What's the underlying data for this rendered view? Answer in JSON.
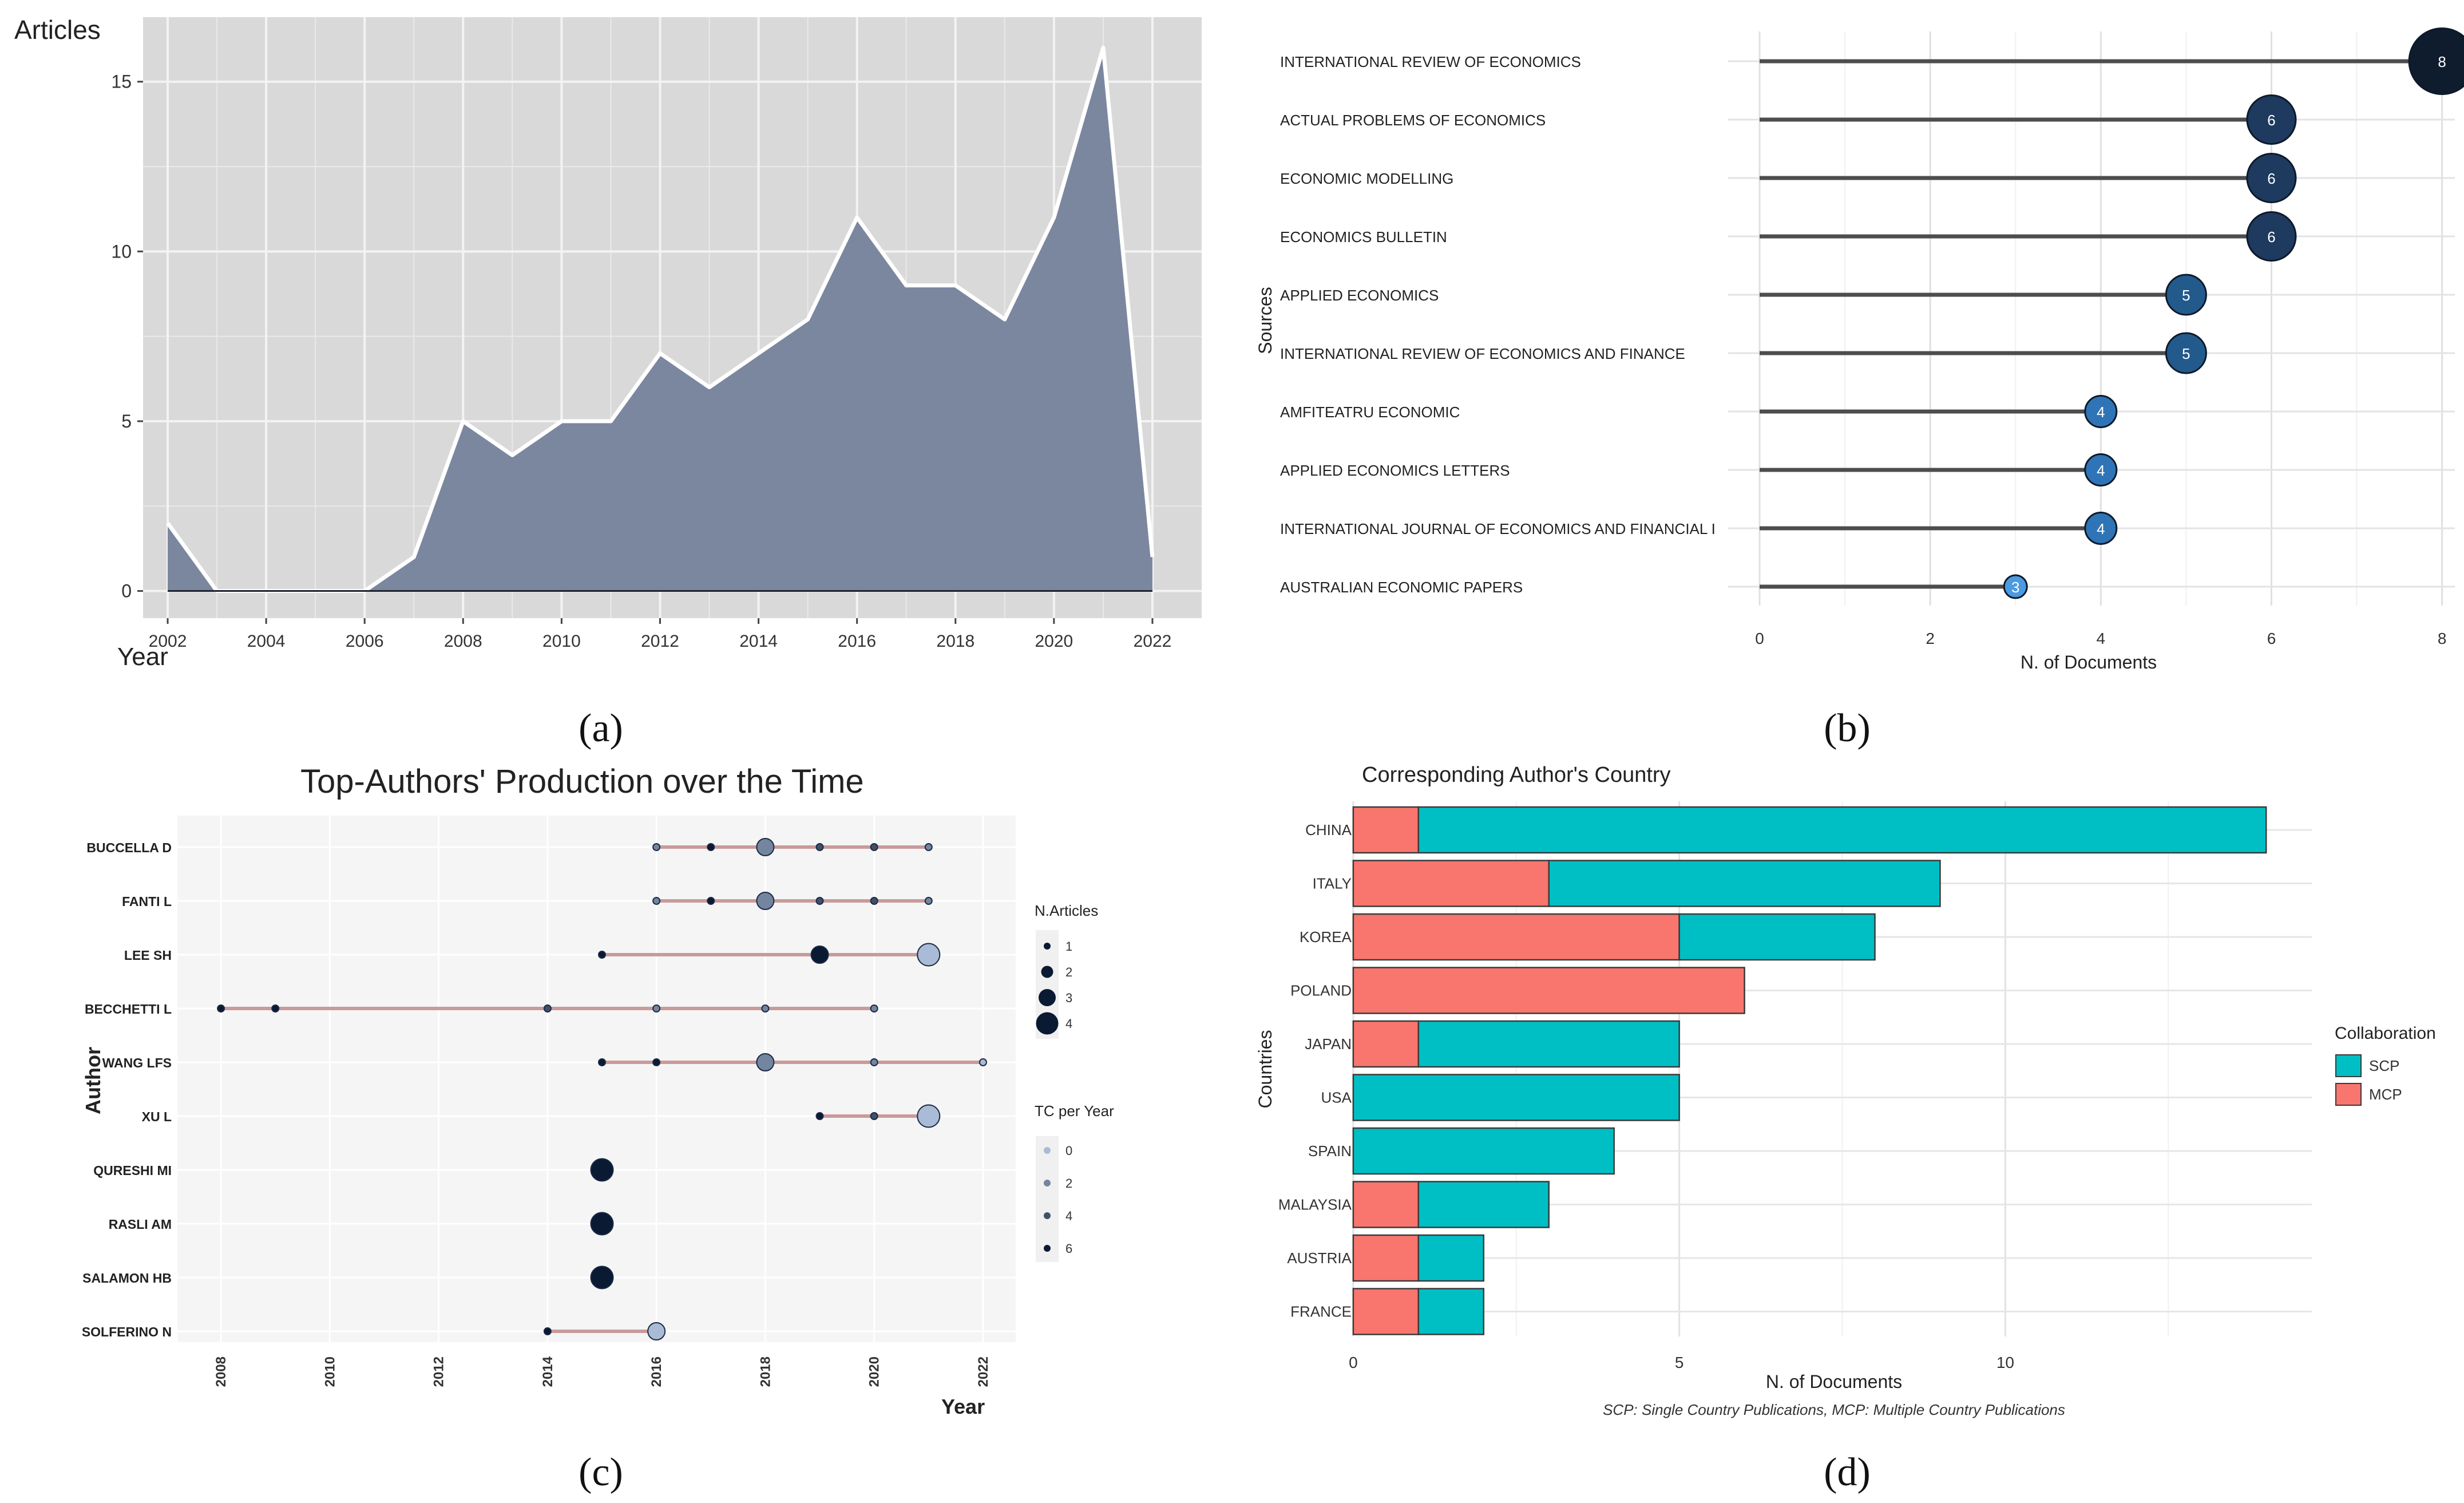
{
  "panel_labels": [
    "(a)",
    "(b)",
    "(c)",
    "(d)"
  ],
  "chart_data": [
    {
      "id": "a",
      "type": "area",
      "title": "",
      "xlabel": "Year",
      "ylabel": "Articles",
      "x": [
        2002,
        2003,
        2004,
        2005,
        2006,
        2007,
        2008,
        2009,
        2010,
        2011,
        2012,
        2013,
        2014,
        2015,
        2016,
        2017,
        2018,
        2019,
        2020,
        2021,
        2022
      ],
      "values": [
        2,
        0,
        0,
        0,
        0,
        1,
        5,
        4,
        5,
        5,
        7,
        6,
        7,
        8,
        11,
        9,
        9,
        8,
        11,
        16,
        1
      ],
      "xlim": [
        2001.5,
        2023
      ],
      "ylim": [
        -0.8,
        16.9
      ],
      "xticks": [
        2002,
        2004,
        2006,
        2008,
        2010,
        2012,
        2014,
        2016,
        2018,
        2020,
        2022
      ],
      "yticks": [
        0,
        5,
        10,
        15
      ],
      "grid": true,
      "colors": {
        "fill": "#7b879f",
        "line": "#ffffff",
        "panel_bg": "#d9d9d9",
        "grid": "#f3f3f3"
      }
    },
    {
      "id": "b",
      "type": "bar",
      "subtype": "lollipop",
      "xlabel": "N. of Documents",
      "ylabel": "Sources",
      "categories": [
        "INTERNATIONAL REVIEW OF ECONOMICS",
        "ACTUAL PROBLEMS OF ECONOMICS",
        "ECONOMIC MODELLING",
        "ECONOMICS BULLETIN",
        "APPLIED ECONOMICS",
        "INTERNATIONAL REVIEW OF ECONOMICS AND FINANCE",
        "AMFITEATRU ECONOMIC",
        "APPLIED ECONOMICS LETTERS",
        "INTERNATIONAL JOURNAL OF ECONOMICS AND FINANCIAL I",
        "AUSTRALIAN ECONOMIC PAPERS"
      ],
      "values": [
        8,
        6,
        6,
        6,
        5,
        5,
        4,
        4,
        4,
        3
      ],
      "xlim": [
        0,
        8.15
      ],
      "xticks": [
        0,
        2,
        4,
        6,
        8
      ],
      "grid": true,
      "colors": {
        "v8": "#0e1c2e",
        "v6": "#1e3a5e",
        "v5": "#235a8c",
        "v4": "#2f74b6",
        "v3": "#4a9be0",
        "stem": "#4d4d4d"
      }
    },
    {
      "id": "c",
      "type": "scatter",
      "title": "Top-Authors' Production over the Time",
      "xlabel": "Year",
      "ylabel": "Author",
      "authors": [
        "BUCCELLA D",
        "FANTI L",
        "LEE SH",
        "BECCHETTI L",
        "WANG LFS",
        "XU L",
        "QURESHI MI",
        "RASLI AM",
        "SALAMON HB",
        "SOLFERINO N"
      ],
      "series": [
        {
          "name": "BUCCELLA D",
          "range": [
            2016,
            2021
          ],
          "points": [
            {
              "year": 2016,
              "articles": 1,
              "tc": 2
            },
            {
              "year": 2017,
              "articles": 1,
              "tc": 6
            },
            {
              "year": 2018,
              "articles": 3,
              "tc": 2
            },
            {
              "year": 2019,
              "articles": 1,
              "tc": 4
            },
            {
              "year": 2020,
              "articles": 1,
              "tc": 4
            },
            {
              "year": 2021,
              "articles": 1,
              "tc": 2
            }
          ]
        },
        {
          "name": "FANTI L",
          "range": [
            2016,
            2021
          ],
          "points": [
            {
              "year": 2016,
              "articles": 1,
              "tc": 2
            },
            {
              "year": 2017,
              "articles": 1,
              "tc": 6
            },
            {
              "year": 2018,
              "articles": 3,
              "tc": 2
            },
            {
              "year": 2019,
              "articles": 1,
              "tc": 4
            },
            {
              "year": 2020,
              "articles": 1,
              "tc": 4
            },
            {
              "year": 2021,
              "articles": 1,
              "tc": 2
            }
          ]
        },
        {
          "name": "LEE SH",
          "range": [
            2015,
            2021
          ],
          "points": [
            {
              "year": 2015,
              "articles": 1,
              "tc": 6
            },
            {
              "year": 2019,
              "articles": 3,
              "tc": 6
            },
            {
              "year": 2021,
              "articles": 4,
              "tc": 0
            }
          ]
        },
        {
          "name": "BECCHETTI L",
          "range": [
            2008,
            2020
          ],
          "points": [
            {
              "year": 2008,
              "articles": 1,
              "tc": 6
            },
            {
              "year": 2009,
              "articles": 1,
              "tc": 6
            },
            {
              "year": 2014,
              "articles": 1,
              "tc": 4
            },
            {
              "year": 2016,
              "articles": 1,
              "tc": 2
            },
            {
              "year": 2018,
              "articles": 1,
              "tc": 2
            },
            {
              "year": 2020,
              "articles": 1,
              "tc": 2
            }
          ]
        },
        {
          "name": "WANG LFS",
          "range": [
            2015,
            2022
          ],
          "points": [
            {
              "year": 2015,
              "articles": 1,
              "tc": 6
            },
            {
              "year": 2016,
              "articles": 1,
              "tc": 6
            },
            {
              "year": 2018,
              "articles": 3,
              "tc": 2
            },
            {
              "year": 2020,
              "articles": 1,
              "tc": 2
            },
            {
              "year": 2022,
              "articles": 1,
              "tc": 0
            }
          ]
        },
        {
          "name": "XU L",
          "range": [
            2019,
            2021
          ],
          "points": [
            {
              "year": 2019,
              "articles": 1,
              "tc": 6
            },
            {
              "year": 2020,
              "articles": 1,
              "tc": 4
            },
            {
              "year": 2021,
              "articles": 4,
              "tc": 0
            }
          ]
        },
        {
          "name": "QURESHI MI",
          "range": [
            2015,
            2015
          ],
          "points": [
            {
              "year": 2015,
              "articles": 4,
              "tc": 6
            }
          ]
        },
        {
          "name": "RASLI AM",
          "range": [
            2015,
            2015
          ],
          "points": [
            {
              "year": 2015,
              "articles": 4,
              "tc": 6
            }
          ]
        },
        {
          "name": "SALAMON HB",
          "range": [
            2015,
            2015
          ],
          "points": [
            {
              "year": 2015,
              "articles": 4,
              "tc": 6
            }
          ]
        },
        {
          "name": "SOLFERINO N",
          "range": [
            2014,
            2016
          ],
          "points": [
            {
              "year": 2014,
              "articles": 1,
              "tc": 6
            },
            {
              "year": 2016,
              "articles": 3,
              "tc": 0
            }
          ]
        }
      ],
      "xlim": [
        2007.2,
        2022.6
      ],
      "xticks": [
        2008,
        2010,
        2012,
        2014,
        2016,
        2018,
        2020,
        2022
      ],
      "legend": {
        "size_title": "N.Articles",
        "size_values": [
          1,
          2,
          3,
          4
        ],
        "color_title": "TC per Year",
        "color_values": [
          0,
          2,
          4,
          6
        ]
      },
      "colors": {
        "panel_bg": "#f5f5f5",
        "line": "#c99a9a",
        "tc_low": "#a9bbd6",
        "tc_high": "#0b1a33"
      }
    },
    {
      "id": "d",
      "type": "bar",
      "subtype": "stacked-horizontal",
      "title": "Corresponding Author's Country",
      "xlabel": "N. of Documents",
      "ylabel": "Countries",
      "caption": "SCP: Single Country Publications, MCP: Multiple Country Publications",
      "categories": [
        "CHINA",
        "ITALY",
        "KOREA",
        "POLAND",
        "JAPAN",
        "USA",
        "SPAIN",
        "MALAYSIA",
        "AUSTRIA",
        "FRANCE"
      ],
      "series": [
        {
          "name": "MCP",
          "values": [
            1,
            3,
            5,
            6,
            1,
            0,
            0,
            1,
            1,
            1
          ],
          "color": "#f8766d"
        },
        {
          "name": "SCP",
          "values": [
            13,
            6,
            3,
            0,
            4,
            5,
            4,
            2,
            1,
            1
          ],
          "color": "#00bfc4"
        }
      ],
      "xlim": [
        -0.35,
        14.7
      ],
      "xticks": [
        0,
        5,
        10
      ],
      "legend": {
        "title": "Collaboration",
        "items": [
          "SCP",
          "MCP"
        ]
      },
      "grid": true
    }
  ]
}
